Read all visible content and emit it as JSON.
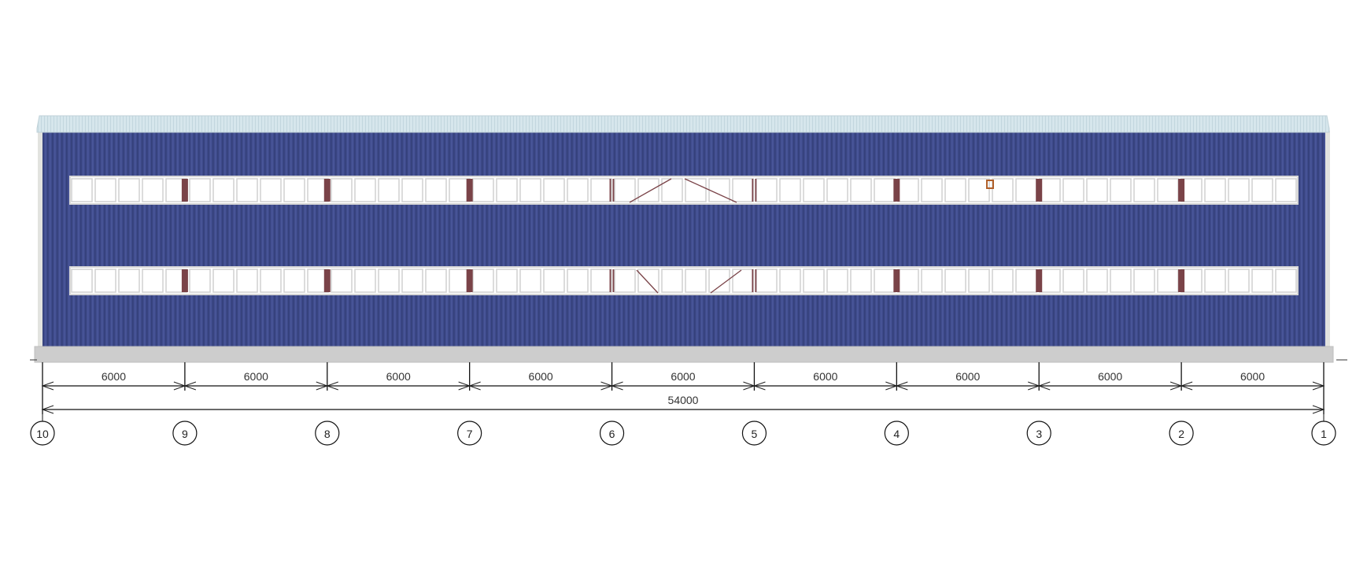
{
  "drawing": {
    "colors": {
      "cladding": "#3f4b8c",
      "roof": "#d3e4ea",
      "plinth": "#cfcfcf",
      "post": "#7a4348",
      "window_frame": "#d6d6d6"
    },
    "bay_dimensions": [
      "6000",
      "6000",
      "6000",
      "6000",
      "6000",
      "6000",
      "6000",
      "6000",
      "6000"
    ],
    "overall_dimension": "54000",
    "axes": [
      "10",
      "9",
      "8",
      "7",
      "6",
      "5",
      "4",
      "3",
      "2",
      "1"
    ]
  }
}
